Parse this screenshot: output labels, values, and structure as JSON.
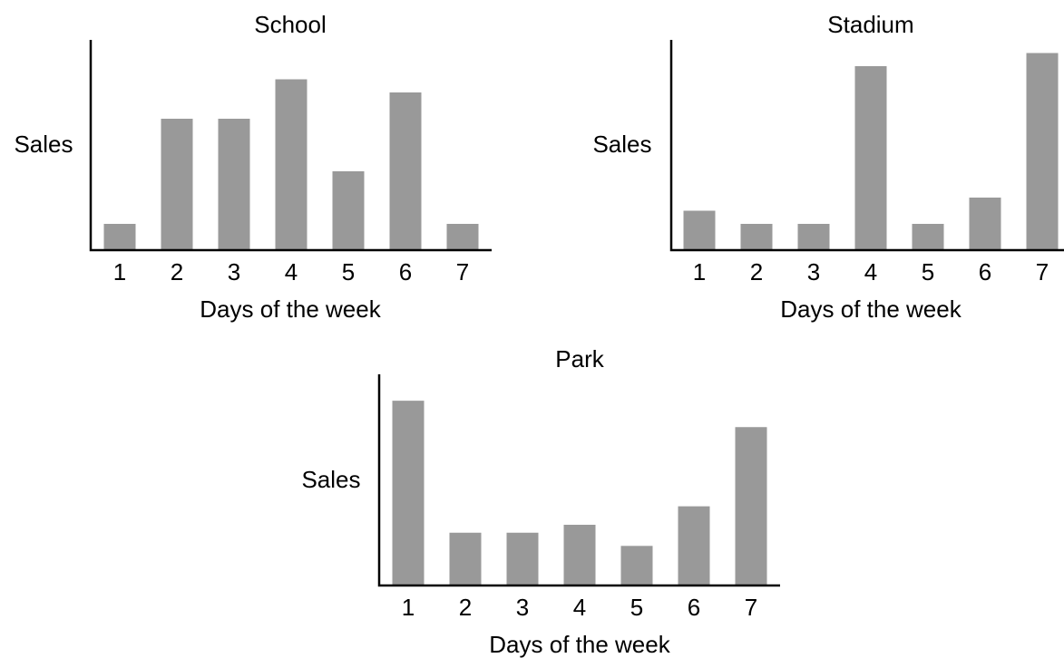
{
  "chart_data": [
    {
      "type": "bar",
      "title": "School",
      "xlabel": "Days of the week",
      "ylabel": "Sales",
      "categories": [
        "1",
        "2",
        "3",
        "4",
        "5",
        "6",
        "7"
      ],
      "values": [
        1.0,
        5.0,
        5.0,
        6.5,
        3.0,
        6.0,
        1.0
      ],
      "ylim": [
        0,
        8
      ],
      "y_ticks_shown": false,
      "grid": false,
      "bar_color": "#999999"
    },
    {
      "type": "bar",
      "title": "Stadium",
      "xlabel": "Days of the week",
      "ylabel": "Sales",
      "categories": [
        "1",
        "2",
        "3",
        "4",
        "5",
        "6",
        "7"
      ],
      "values": [
        1.5,
        1.0,
        1.0,
        7.0,
        1.0,
        2.0,
        7.5
      ],
      "ylim": [
        0,
        8
      ],
      "y_ticks_shown": false,
      "grid": false,
      "bar_color": "#999999"
    },
    {
      "type": "bar",
      "title": "Park",
      "xlabel": "Days of the week",
      "ylabel": "Sales",
      "categories": [
        "1",
        "2",
        "3",
        "4",
        "5",
        "6",
        "7"
      ],
      "values": [
        7.0,
        2.0,
        2.0,
        2.3,
        1.5,
        3.0,
        6.0
      ],
      "ylim": [
        0,
        8
      ],
      "y_ticks_shown": false,
      "grid": false,
      "bar_color": "#999999"
    }
  ]
}
